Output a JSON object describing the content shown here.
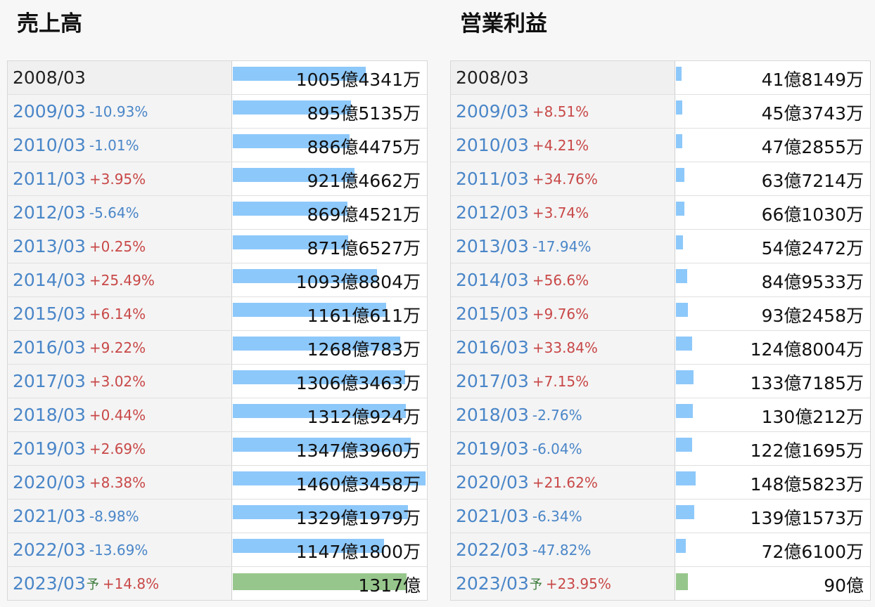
{
  "chart_data": [
    {
      "type": "table",
      "title": "売上高",
      "rows": [
        {
          "year": "2008/03",
          "change": "",
          "value": 1005.4341,
          "label": "1005億4341万"
        },
        {
          "year": "2009/03",
          "change": "-10.93%",
          "value": 895.5135,
          "label": "895億5135万"
        },
        {
          "year": "2010/03",
          "change": "-1.01%",
          "value": 886.4475,
          "label": "886億4475万"
        },
        {
          "year": "2011/03",
          "change": "+3.95%",
          "value": 921.4662,
          "label": "921億4662万"
        },
        {
          "year": "2012/03",
          "change": "-5.64%",
          "value": 869.4521,
          "label": "869億4521万"
        },
        {
          "year": "2013/03",
          "change": "+0.25%",
          "value": 871.6527,
          "label": "871億6527万"
        },
        {
          "year": "2014/03",
          "change": "+25.49%",
          "value": 1093.8804,
          "label": "1093億8804万"
        },
        {
          "year": "2015/03",
          "change": "+6.14%",
          "value": 1161.0611,
          "label": "1161億611万"
        },
        {
          "year": "2016/03",
          "change": "+9.22%",
          "value": 1268.0783,
          "label": "1268億783万"
        },
        {
          "year": "2017/03",
          "change": "+3.02%",
          "value": 1306.3463,
          "label": "1306億3463万"
        },
        {
          "year": "2018/03",
          "change": "+0.44%",
          "value": 1312.0924,
          "label": "1312億924万"
        },
        {
          "year": "2019/03",
          "change": "+2.69%",
          "value": 1347.396,
          "label": "1347億3960万"
        },
        {
          "year": "2020/03",
          "change": "+8.38%",
          "value": 1460.3458,
          "label": "1460億3458万"
        },
        {
          "year": "2021/03",
          "change": "-8.98%",
          "value": 1329.1979,
          "label": "1329億1979万"
        },
        {
          "year": "2022/03",
          "change": "-13.69%",
          "value": 1147.18,
          "label": "1147億1800万"
        },
        {
          "year": "2023/03",
          "forecast_mark": "予",
          "change": "+14.8%",
          "value": 1317,
          "label": "1317億",
          "forecast": true
        }
      ]
    },
    {
      "type": "table",
      "title": "営業利益",
      "rows": [
        {
          "year": "2008/03",
          "change": "",
          "value": 41.8149,
          "label": "41億8149万"
        },
        {
          "year": "2009/03",
          "change": "+8.51%",
          "value": 45.3743,
          "label": "45億3743万"
        },
        {
          "year": "2010/03",
          "change": "+4.21%",
          "value": 47.2855,
          "label": "47億2855万"
        },
        {
          "year": "2011/03",
          "change": "+34.76%",
          "value": 63.7214,
          "label": "63億7214万"
        },
        {
          "year": "2012/03",
          "change": "+3.74%",
          "value": 66.103,
          "label": "66億1030万"
        },
        {
          "year": "2013/03",
          "change": "-17.94%",
          "value": 54.2472,
          "label": "54億2472万"
        },
        {
          "year": "2014/03",
          "change": "+56.6%",
          "value": 84.9533,
          "label": "84億9533万"
        },
        {
          "year": "2015/03",
          "change": "+9.76%",
          "value": 93.2458,
          "label": "93億2458万"
        },
        {
          "year": "2016/03",
          "change": "+33.84%",
          "value": 124.8004,
          "label": "124億8004万"
        },
        {
          "year": "2017/03",
          "change": "+7.15%",
          "value": 133.7185,
          "label": "133億7185万"
        },
        {
          "year": "2018/03",
          "change": "-2.76%",
          "value": 130.0212,
          "label": "130億212万"
        },
        {
          "year": "2019/03",
          "change": "-6.04%",
          "value": 122.1695,
          "label": "122億1695万"
        },
        {
          "year": "2020/03",
          "change": "+21.62%",
          "value": 148.5823,
          "label": "148億5823万"
        },
        {
          "year": "2021/03",
          "change": "-6.34%",
          "value": 139.1573,
          "label": "139億1573万"
        },
        {
          "year": "2022/03",
          "change": "-47.82%",
          "value": 72.61,
          "label": "72億6100万"
        },
        {
          "year": "2023/03",
          "forecast_mark": "予",
          "change": "+23.95%",
          "value": 90,
          "label": "90億",
          "forecast": true
        }
      ]
    }
  ],
  "colors": {
    "bar": "#8dc8fa",
    "forecast_bar": "#97c68c",
    "increase": "#c94848",
    "decrease": "#4a86c8"
  }
}
